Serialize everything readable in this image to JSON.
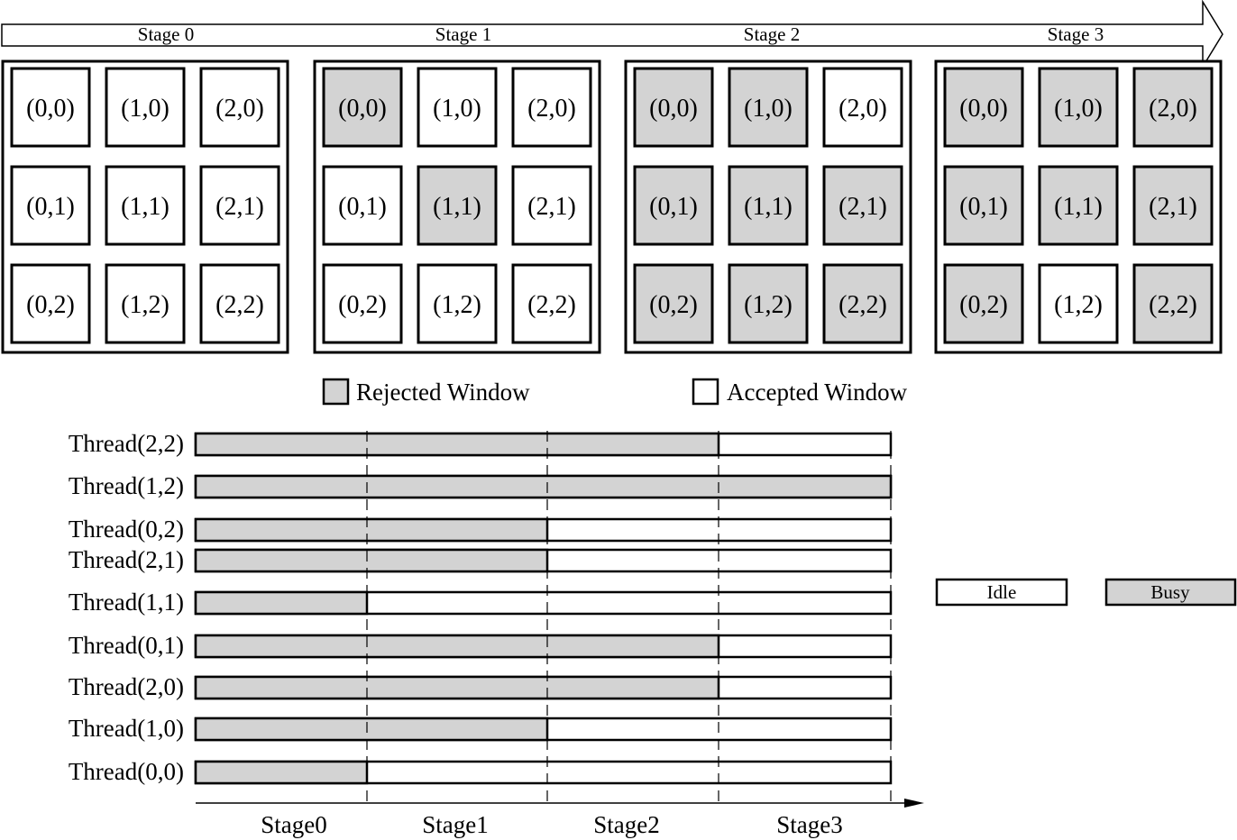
{
  "stages": {
    "labels": [
      "Stage 0",
      "Stage 1",
      "Stage 2",
      "Stage 3"
    ],
    "grids": [
      [
        [
          0,
          0,
          0
        ],
        [
          0,
          0,
          0
        ],
        [
          0,
          0,
          0
        ]
      ],
      [
        [
          1,
          0,
          0
        ],
        [
          0,
          1,
          0
        ],
        [
          0,
          0,
          0
        ]
      ],
      [
        [
          1,
          1,
          0
        ],
        [
          1,
          1,
          1
        ],
        [
          1,
          1,
          1
        ]
      ],
      [
        [
          1,
          1,
          1
        ],
        [
          1,
          1,
          1
        ],
        [
          1,
          0,
          1
        ]
      ]
    ],
    "cell_labels": [
      [
        "(0,0)",
        "(1,0)",
        "(2,0)"
      ],
      [
        "(0,1)",
        "(1,1)",
        "(2,1)"
      ],
      [
        "(0,2)",
        "(1,2)",
        "(2,2)"
      ]
    ]
  },
  "legend": {
    "rejected": "Rejected Window",
    "accepted": "Accepted Window",
    "idle": "Idle",
    "busy": "Busy"
  },
  "colors": {
    "rejected": "#d3d3d3",
    "accepted": "#ffffff",
    "line": "#000000"
  },
  "timeline": {
    "stage_labels": [
      "Stage0",
      "Stage1",
      "Stage2",
      "Stage3"
    ],
    "threads": [
      {
        "label": "Thread(2,2)",
        "busy_stages": 3
      },
      {
        "label": "Thread(1,2)",
        "busy_stages": 4
      },
      {
        "label": "Thread(0,2)",
        "busy_stages": 2
      },
      {
        "label": "Thread(2,1)",
        "busy_stages": 2
      },
      {
        "label": "Thread(1,1)",
        "busy_stages": 1
      },
      {
        "label": "Thread(0,1)",
        "busy_stages": 3
      },
      {
        "label": "Thread(2,0)",
        "busy_stages": 3
      },
      {
        "label": "Thread(1,0)",
        "busy_stages": 2
      },
      {
        "label": "Thread(0,0)",
        "busy_stages": 1
      }
    ]
  }
}
